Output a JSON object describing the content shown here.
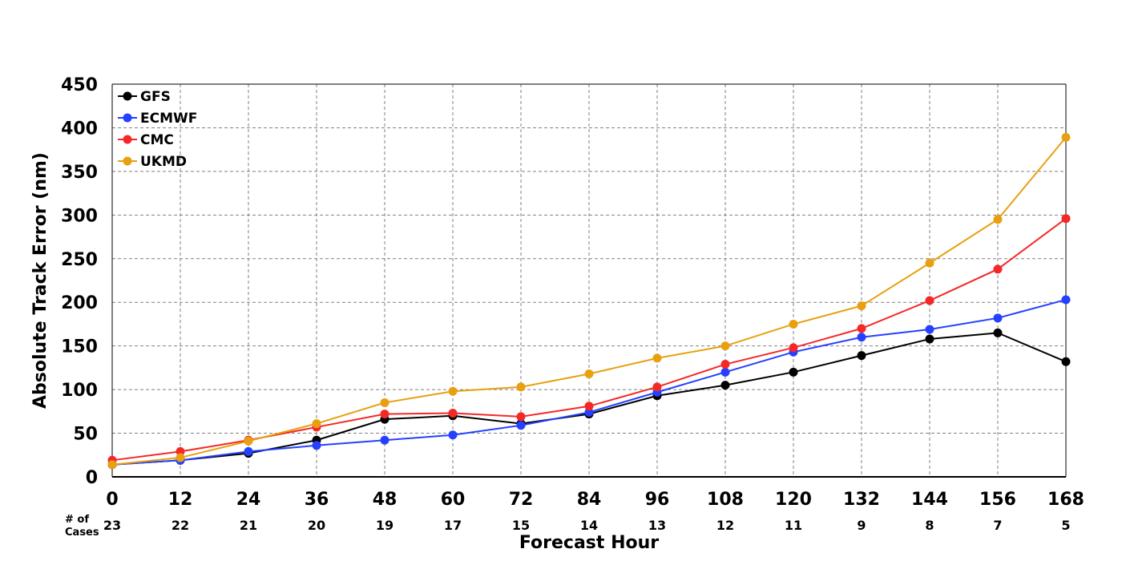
{
  "chart_data": {
    "type": "line",
    "title": "",
    "xlabel": "Forecast Hour",
    "ylabel": "Absolute Track Error (nm)",
    "xlim": [
      0,
      168
    ],
    "ylim": [
      0,
      450
    ],
    "x": [
      0,
      12,
      24,
      36,
      48,
      60,
      72,
      84,
      96,
      108,
      120,
      132,
      144,
      156,
      168
    ],
    "x_ticks": [
      "0",
      "12",
      "24",
      "36",
      "48",
      "60",
      "72",
      "84",
      "96",
      "108",
      "120",
      "132",
      "144",
      "156",
      "168"
    ],
    "y_ticks": [
      "0",
      "50",
      "100",
      "150",
      "200",
      "250",
      "300",
      "350",
      "400",
      "450"
    ],
    "grid": true,
    "legend_position": "top-left",
    "cases_label_line1": "# of",
    "cases_label_line2": "Cases",
    "cases": [
      "23",
      "22",
      "21",
      "20",
      "19",
      "17",
      "15",
      "14",
      "13",
      "12",
      "11",
      "9",
      "8",
      "7",
      "5"
    ],
    "series": [
      {
        "name": "GFS",
        "color": "#000000",
        "values": [
          14,
          19,
          27,
          42,
          66,
          70,
          61,
          72,
          93,
          105,
          120,
          139,
          158,
          165,
          132
        ]
      },
      {
        "name": "ECMWF",
        "color": "#2540ff",
        "values": [
          14,
          19,
          29,
          36,
          42,
          48,
          59,
          74,
          97,
          120,
          143,
          160,
          169,
          182,
          203
        ]
      },
      {
        "name": "CMC",
        "color": "#f52828",
        "values": [
          19,
          29,
          42,
          57,
          72,
          73,
          69,
          81,
          103,
          129,
          148,
          170,
          202,
          238,
          296
        ]
      },
      {
        "name": "UKMD",
        "color": "#e8a010",
        "values": [
          14,
          22,
          41,
          61,
          85,
          98,
          103,
          118,
          136,
          150,
          175,
          196,
          245,
          295,
          389
        ]
      }
    ]
  }
}
